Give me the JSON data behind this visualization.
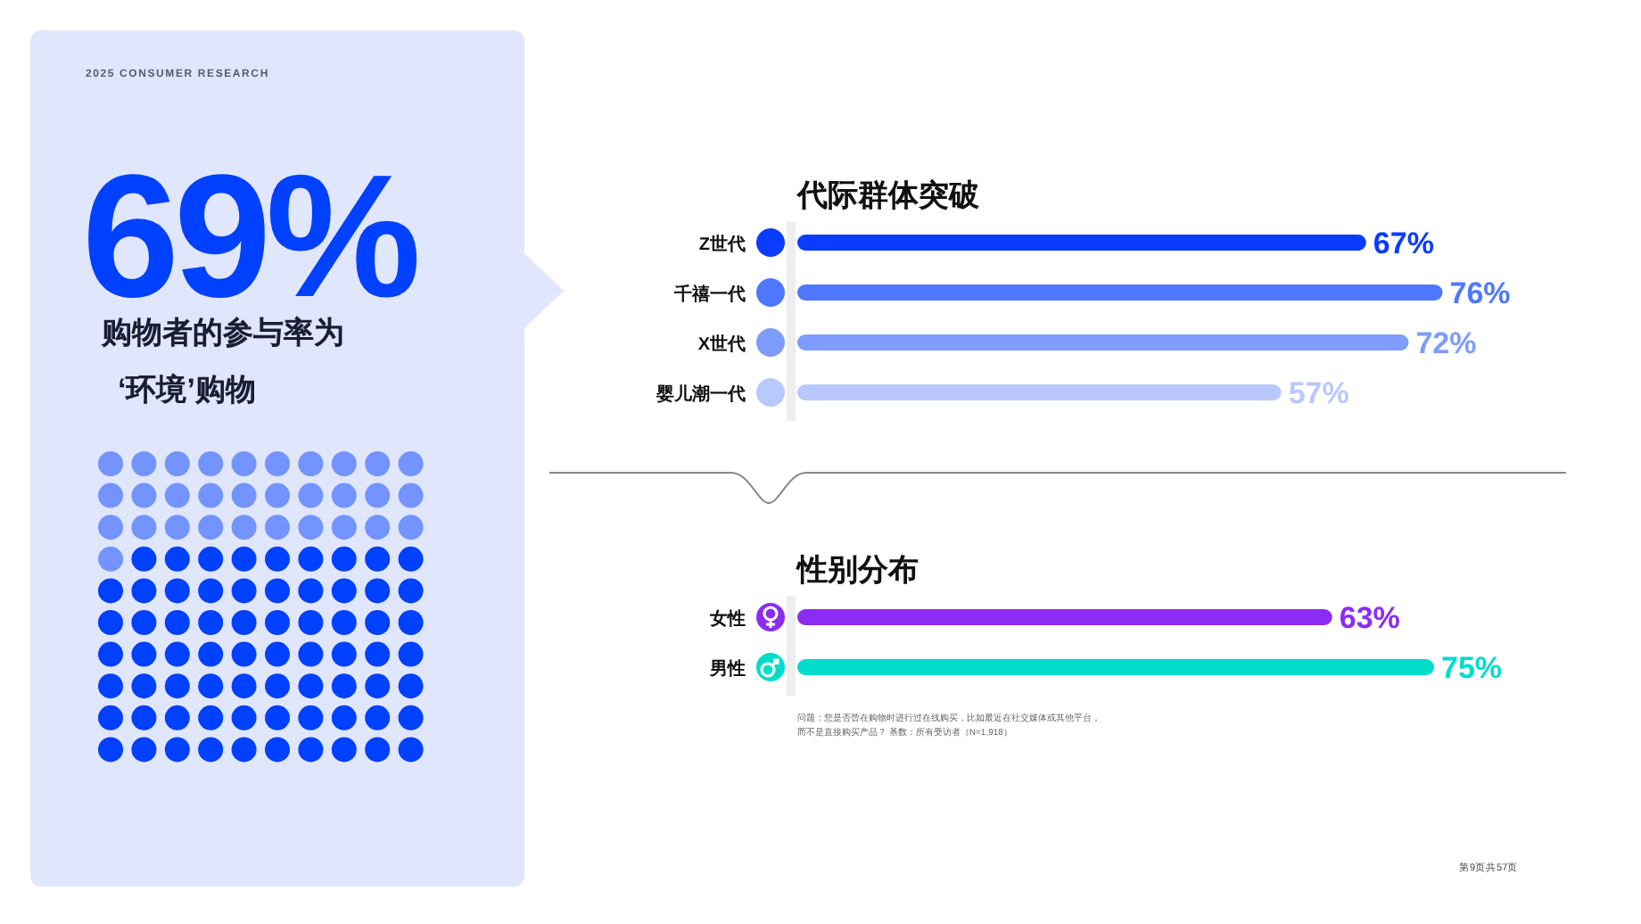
{
  "chart_data": [
    {
      "type": "other",
      "subtitle": "购物者的参与率为",
      "annotations": [
        "2025 CONSUMER RESEARCH",
        "‘环境’购物"
      ],
      "values": [
        69
      ],
      "value_labels": [
        "69%"
      ]
    },
    {
      "type": "bar",
      "orientation": "horizontal",
      "title": "代际群体突破",
      "categories": [
        "Z世代",
        "千禧一代",
        "X世代",
        "婴儿潮一代"
      ],
      "values": [
        67,
        76,
        72,
        57
      ],
      "colors": [
        "#0a3cff",
        "#4f78ff",
        "#7f9cff",
        "#b9c8ff"
      ],
      "value_labels": [
        "67%",
        "76%",
        "72%",
        "57%"
      ]
    },
    {
      "type": "bar",
      "orientation": "horizontal",
      "title": "性别分布",
      "categories": [
        "女性",
        "男性"
      ],
      "values": [
        63,
        75
      ],
      "colors": [
        "#8a2cf2",
        "#00dccc"
      ],
      "value_labels": [
        "63%",
        "75%"
      ],
      "annotations": [
        "问题：您是否曾在购物时进行过在线购买，比如最近在社交媒体或其他平台，",
        "而不是直接购买产品？ 基数：所有受访者（N=1,918）",
        "第9页共57页"
      ]
    }
  ]
}
